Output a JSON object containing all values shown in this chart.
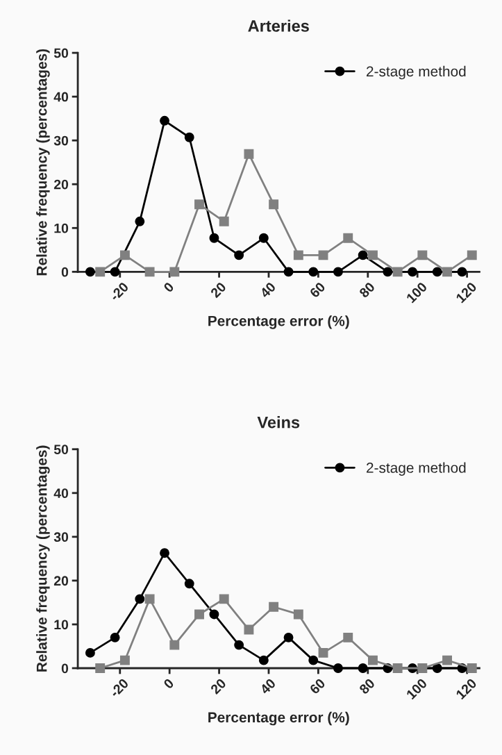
{
  "chart_data": [
    {
      "type": "line",
      "title": "Arteries",
      "xlabel": "Percentage error (%)",
      "ylabel": "Relative frequency (percentages)",
      "xlim": [
        -37,
        125
      ],
      "xticks": [
        -20,
        0,
        20,
        40,
        60,
        80,
        100,
        120
      ],
      "ylim": [
        0,
        50
      ],
      "yticks": [
        0,
        10,
        20,
        30,
        40,
        50
      ],
      "grid": false,
      "legend": "top right",
      "series": [
        {
          "name": "2-stage method",
          "color": "#000000",
          "marker": "circle",
          "x": [
            -32,
            -22,
            -12,
            -2,
            8,
            18,
            28,
            38,
            48,
            58,
            68,
            78,
            88,
            98,
            108,
            118
          ],
          "values": [
            0,
            0,
            11.5,
            34.5,
            30.7,
            7.7,
            3.8,
            7.7,
            0,
            0,
            0,
            3.8,
            0,
            0,
            0,
            0
          ]
        },
        {
          "color": "#808080",
          "marker": "square",
          "x": [
            -28,
            -18,
            -8,
            2,
            12,
            22,
            32,
            42,
            52,
            62,
            72,
            82,
            92,
            102,
            112,
            122
          ],
          "values": [
            0,
            3.8,
            0,
            0,
            15.4,
            11.5,
            26.9,
            15.4,
            3.8,
            3.8,
            7.7,
            3.8,
            0,
            3.8,
            0,
            3.8
          ]
        }
      ]
    },
    {
      "type": "line",
      "title": "Veins",
      "xlabel": "Percentage error (%)",
      "ylabel": "Relative frequency (percentages)",
      "xlim": [
        -37,
        125
      ],
      "xticks": [
        -20,
        0,
        20,
        40,
        60,
        80,
        100,
        120
      ],
      "ylim": [
        0,
        50
      ],
      "yticks": [
        0,
        10,
        20,
        30,
        40,
        50
      ],
      "grid": false,
      "legend": "top right",
      "series": [
        {
          "name": "2-stage method",
          "color": "#000000",
          "marker": "circle",
          "x": [
            -32,
            -22,
            -12,
            -2,
            8,
            18,
            28,
            38,
            48,
            58,
            68,
            78,
            88,
            98,
            108,
            118
          ],
          "values": [
            3.5,
            7.0,
            15.8,
            26.3,
            19.3,
            12.3,
            5.3,
            1.8,
            7.0,
            1.8,
            0,
            0,
            0,
            0,
            0,
            0
          ]
        },
        {
          "color": "#808080",
          "marker": "square",
          "x": [
            -28,
            -18,
            -8,
            2,
            12,
            22,
            32,
            42,
            52,
            62,
            72,
            82,
            92,
            102,
            112,
            122
          ],
          "values": [
            0,
            1.8,
            15.8,
            5.3,
            12.3,
            15.8,
            8.8,
            14.0,
            12.3,
            3.5,
            7.0,
            1.8,
            0,
            0,
            1.8,
            0
          ]
        }
      ]
    }
  ]
}
